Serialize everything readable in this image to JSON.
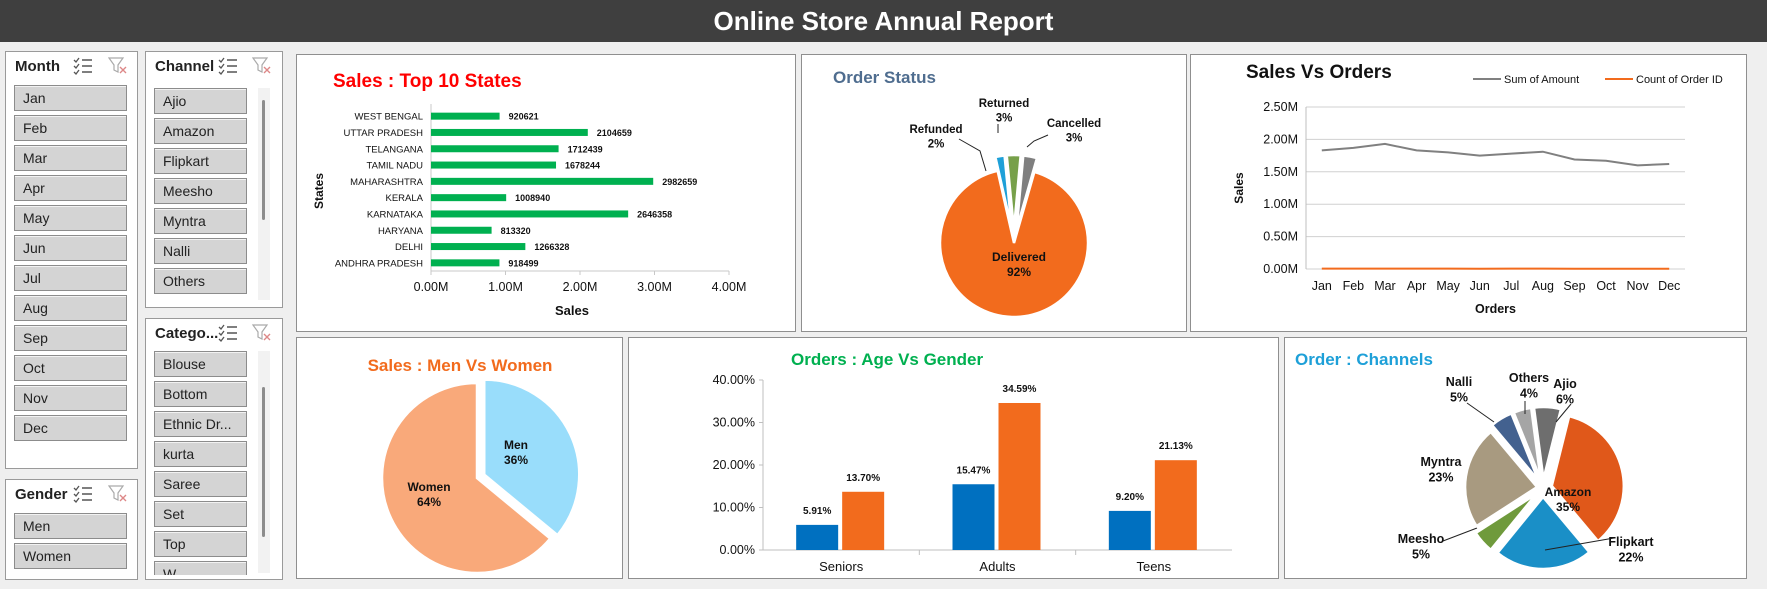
{
  "report_title": "Online Store Annual Report",
  "slicers": {
    "month": {
      "title": "Month",
      "items": [
        "Jan",
        "Feb",
        "Mar",
        "Apr",
        "May",
        "Jun",
        "Jul",
        "Aug",
        "Sep",
        "Oct",
        "Nov",
        "Dec"
      ]
    },
    "channel": {
      "title": "Channel",
      "items": [
        "Ajio",
        "Amazon",
        "Flipkart",
        "Meesho",
        "Myntra",
        "Nalli",
        "Others"
      ]
    },
    "category": {
      "title": "Catego...",
      "items": [
        "Blouse",
        "Bottom",
        "Ethnic Dr...",
        "kurta",
        "Saree",
        "Set",
        "Top",
        "W..."
      ]
    },
    "gender": {
      "title": "Gender",
      "items": [
        "Men",
        "Women"
      ]
    }
  },
  "colors": {
    "green_bar": "#00b050",
    "orange": "#f26b1d",
    "blue": "#0070c0",
    "gray_line": "#808080",
    "men": "#99ddfb",
    "women": "#f9a97a"
  },
  "chart_data": [
    {
      "id": "top_states",
      "type": "bar",
      "orientation": "horizontal",
      "title": "Sales : Top 10 States",
      "title_color": "#ff0000",
      "xlabel": "Sales",
      "ylabel": "States",
      "categories": [
        "WEST BENGAL",
        "UTTAR PRADESH",
        "TELANGANA",
        "TAMIL NADU",
        "MAHARASHTRA",
        "KERALA",
        "KARNATAKA",
        "HARYANA",
        "DELHI",
        "ANDHRA PRADESH"
      ],
      "values": [
        920621,
        2104659,
        1712439,
        1678244,
        2982659,
        1008940,
        2646358,
        813320,
        1266328,
        918499
      ],
      "data_labels": [
        "920621",
        "2104659",
        "1712439",
        "1678244",
        "2982659",
        "1008940",
        "2646358",
        "813320",
        "1266328",
        "918499"
      ],
      "xlim": [
        0,
        4000000
      ],
      "xticks": [
        "0.00M",
        "1.00M",
        "2.00M",
        "3.00M",
        "4.00M"
      ],
      "grid": false
    },
    {
      "id": "order_status",
      "type": "pie",
      "title": "Order Status",
      "title_color": "#4f6d8f",
      "slices": [
        {
          "label": "Delivered",
          "pct_label": "92%",
          "value": 92,
          "color": "#f26b1d"
        },
        {
          "label": "Refunded",
          "pct_label": "2%",
          "value": 2,
          "color": "#1ea0d8"
        },
        {
          "label": "Returned",
          "pct_label": "3%",
          "value": 3,
          "color": "#77a04a"
        },
        {
          "label": "Cancelled",
          "pct_label": "3%",
          "value": 3,
          "color": "#7f7f7f"
        }
      ]
    },
    {
      "id": "sales_vs_orders",
      "type": "line",
      "title": "Sales Vs Orders",
      "title_color": "#111111",
      "xlabel": "Orders",
      "ylabel": "Sales",
      "categories": [
        "Jan",
        "Feb",
        "Mar",
        "Apr",
        "May",
        "Jun",
        "Jul",
        "Aug",
        "Sep",
        "Oct",
        "Nov",
        "Dec"
      ],
      "series": [
        {
          "name": "Sum of Amount",
          "color": "#808080",
          "values": [
            1830000,
            1870000,
            1930000,
            1830000,
            1800000,
            1750000,
            1780000,
            1810000,
            1690000,
            1670000,
            1600000,
            1620000
          ]
        },
        {
          "name": "Count of Order ID",
          "color": "#f26b1d",
          "values": [
            5000,
            5100,
            5300,
            5000,
            4900,
            4800,
            4900,
            4950,
            4700,
            4650,
            4500,
            4550
          ]
        }
      ],
      "ylim": [
        0,
        2500000
      ],
      "yticks": [
        "0.00M",
        "0.50M",
        "1.00M",
        "1.50M",
        "2.00M",
        "2.50M"
      ],
      "grid": true,
      "legend": "top-right"
    },
    {
      "id": "men_vs_women",
      "type": "pie",
      "title": "Sales : Men Vs Women",
      "title_color": "#f26b1d",
      "slices": [
        {
          "label": "Men",
          "pct_label": "36%",
          "value": 36,
          "color": "#99ddfb"
        },
        {
          "label": "Women",
          "pct_label": "64%",
          "value": 64,
          "color": "#f9a97a"
        }
      ]
    },
    {
      "id": "age_vs_gender",
      "type": "bar",
      "title": "Orders : Age Vs Gender",
      "title_color": "#00b050",
      "categories": [
        "Seniors",
        "Adults",
        "Teens"
      ],
      "series": [
        {
          "color": "#0070c0",
          "values": [
            5.91,
            15.47,
            9.2
          ],
          "data_labels": [
            "5.91%",
            "15.47%",
            "9.20%"
          ]
        },
        {
          "color": "#f26b1d",
          "values": [
            13.7,
            34.59,
            21.13
          ],
          "data_labels": [
            "13.70%",
            "34.59%",
            "21.13%"
          ]
        }
      ],
      "ylim": [
        0,
        40
      ],
      "yticks": [
        "0.00%",
        "10.00%",
        "20.00%",
        "30.00%",
        "40.00%"
      ],
      "grid": false
    },
    {
      "id": "order_channels",
      "type": "pie",
      "title": "Order : Channels",
      "title_color": "#1ea0d8",
      "slices": [
        {
          "label": "Amazon",
          "pct_label": "35%",
          "value": 35,
          "color": "#e0581a"
        },
        {
          "label": "Flipkart",
          "pct_label": "22%",
          "value": 22,
          "color": "#1a8fc7"
        },
        {
          "label": "Meesho",
          "pct_label": "5%",
          "value": 5,
          "color": "#6f9a3c"
        },
        {
          "label": "Myntra",
          "pct_label": "23%",
          "value": 23,
          "color": "#a89a80"
        },
        {
          "label": "Nalli",
          "pct_label": "5%",
          "value": 5,
          "color": "#43618f"
        },
        {
          "label": "Others",
          "pct_label": "4%",
          "value": 4,
          "color": "#a5a5a5"
        },
        {
          "label": "Ajio",
          "pct_label": "6%",
          "value": 6,
          "color": "#6e6e6e"
        }
      ]
    }
  ]
}
